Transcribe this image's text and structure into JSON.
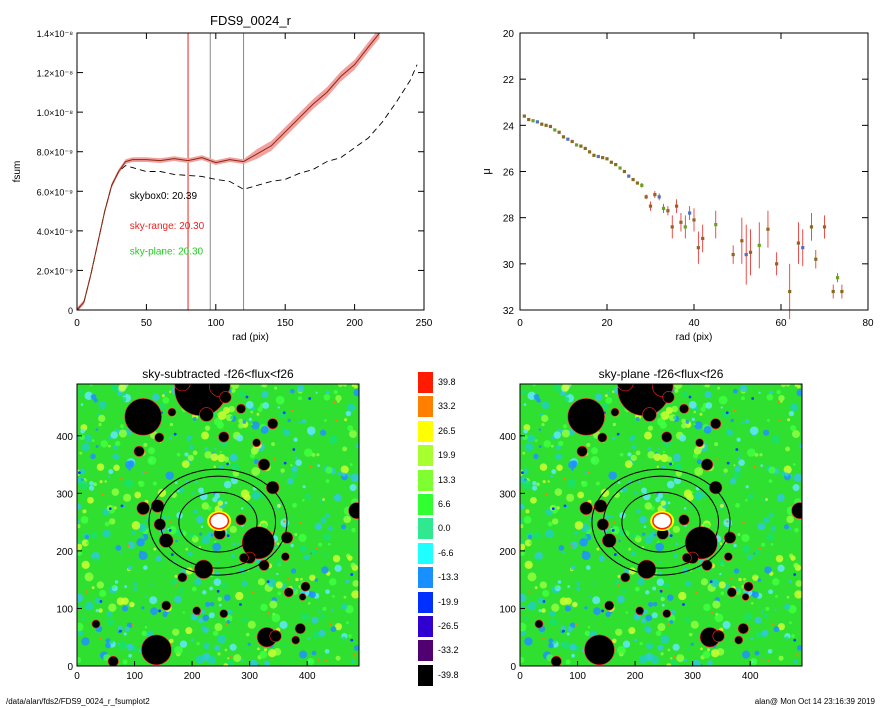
{
  "colors": {
    "red": "#e8231f",
    "pink": "#f2a0a0",
    "green": "#22cc22",
    "gray": "#888888",
    "brown": "#8a6a20"
  },
  "chart_data": [
    {
      "type": "line",
      "title": "FDS9_0024_r",
      "xlabel": "rad (pix)",
      "ylabel": "fsum",
      "xlim": [
        0,
        250
      ],
      "ylim": [
        0,
        1.4e-08
      ],
      "xticks": [
        "0",
        "50",
        "100",
        "150",
        "200",
        "250"
      ],
      "yticks": [
        "0",
        "2.0×10⁻⁹",
        "4.0×10⁻⁹",
        "6.0×10⁻⁹",
        "8.0×10⁻⁹",
        "1.0×10⁻⁸",
        "1.2×10⁻⁸",
        "1.4×10⁻⁸"
      ],
      "vlines": [
        {
          "x": 80,
          "color": "red"
        },
        {
          "x": 96,
          "color": "gray"
        },
        {
          "x": 120,
          "color": "gray"
        }
      ],
      "series": [
        {
          "style": "solid red with pink band",
          "x": [
            0,
            5,
            10,
            15,
            20,
            25,
            30,
            35,
            40,
            50,
            60,
            70,
            80,
            90,
            100,
            110,
            120,
            130,
            140,
            150,
            160,
            170,
            180,
            190,
            200,
            210,
            218
          ],
          "y": [
            0,
            4e-10,
            1.8e-09,
            3.4e-09,
            5e-09,
            6.3e-09,
            7e-09,
            7.5e-09,
            7.6e-09,
            7.6e-09,
            7.55e-09,
            7.65e-09,
            7.55e-09,
            7.7e-09,
            7.45e-09,
            7.6e-09,
            7.5e-09,
            7.9e-09,
            8.3e-09,
            9e-09,
            9.7e-09,
            1.04e-08,
            1.1e-08,
            1.18e-08,
            1.24e-08,
            1.33e-08,
            1.4e-08
          ]
        },
        {
          "style": "dashed black",
          "x": [
            0,
            5,
            10,
            15,
            20,
            25,
            30,
            35,
            40,
            50,
            60,
            70,
            80,
            90,
            100,
            110,
            120,
            130,
            140,
            150,
            160,
            170,
            180,
            190,
            200,
            210,
            220,
            230,
            240,
            245
          ],
          "y": [
            0,
            4e-10,
            1.8e-09,
            3.4e-09,
            5e-09,
            6.3e-09,
            7e-09,
            7.3e-09,
            7.2e-09,
            7e-09,
            7e-09,
            6.85e-09,
            6.8e-09,
            6.75e-09,
            6.6e-09,
            6.5e-09,
            6.1e-09,
            6.3e-09,
            6.5e-09,
            6.6e-09,
            6.9e-09,
            7.1e-09,
            7.5e-09,
            7.7e-09,
            8.2e-09,
            8.7e-09,
            9.5e-09,
            1.05e-08,
            1.16e-08,
            1.24e-08
          ]
        }
      ],
      "annotations": [
        {
          "text": "skybox0: 20.39",
          "color": "black",
          "x": 38,
          "y": 5.6e-09
        },
        {
          "text": "sky-range: 20.30",
          "color": "red",
          "x": 38,
          "y": 4.1e-09
        },
        {
          "text": "sky-plane: 20.30",
          "color": "green",
          "x": 38,
          "y": 2.8e-09
        }
      ]
    },
    {
      "type": "scatter",
      "title": "",
      "xlabel": "rad (pix)",
      "ylabel": "μ",
      "xlim": [
        0,
        80
      ],
      "ylim": [
        32,
        20
      ],
      "xticks": [
        "0",
        "20",
        "40",
        "60",
        "80"
      ],
      "yticks": [
        "20",
        "22",
        "24",
        "26",
        "28",
        "30",
        "32"
      ],
      "points": [
        [
          1,
          23.6,
          0
        ],
        [
          2,
          23.75,
          0
        ],
        [
          3,
          23.8,
          0
        ],
        [
          4,
          23.85,
          0
        ],
        [
          5,
          23.95,
          0
        ],
        [
          6,
          24.0,
          0
        ],
        [
          7,
          24.05,
          0
        ],
        [
          8,
          24.2,
          0
        ],
        [
          9,
          24.3,
          0
        ],
        [
          10,
          24.5,
          0
        ],
        [
          11,
          24.6,
          0
        ],
        [
          12,
          24.7,
          0
        ],
        [
          13,
          24.85,
          0
        ],
        [
          14,
          24.9,
          0
        ],
        [
          15,
          25.0,
          0
        ],
        [
          16,
          25.15,
          0
        ],
        [
          17,
          25.3,
          0
        ],
        [
          18,
          25.35,
          0
        ],
        [
          19,
          25.4,
          0
        ],
        [
          20,
          25.45,
          0
        ],
        [
          21,
          25.6,
          0
        ],
        [
          22,
          25.7,
          0
        ],
        [
          23,
          25.85,
          0
        ],
        [
          24,
          26.0,
          0
        ],
        [
          25,
          26.2,
          0
        ],
        [
          26,
          26.35,
          0
        ],
        [
          27,
          26.5,
          0
        ],
        [
          28,
          26.6,
          0.1
        ],
        [
          29,
          27.1,
          0.1
        ],
        [
          30,
          27.5,
          0.2
        ],
        [
          31,
          27.0,
          0.15
        ],
        [
          32,
          27.1,
          0.15
        ],
        [
          33,
          27.6,
          0.2
        ],
        [
          34,
          27.7,
          0.2
        ],
        [
          35,
          28.4,
          0.5
        ],
        [
          36,
          27.5,
          0.3
        ],
        [
          37,
          28.2,
          0.4
        ],
        [
          38,
          28.4,
          0.5
        ],
        [
          39,
          27.8,
          0.3
        ],
        [
          40,
          28.1,
          0.5
        ],
        [
          41,
          29.3,
          0.7
        ],
        [
          42,
          28.9,
          0.6
        ],
        [
          45,
          28.3,
          0.6
        ],
        [
          49,
          29.6,
          0.4
        ],
        [
          51,
          29.0,
          1.0
        ],
        [
          52,
          29.6,
          1.3
        ],
        [
          53,
          29.5,
          1.0
        ],
        [
          55,
          29.2,
          1.0
        ],
        [
          57,
          28.5,
          0.8
        ],
        [
          59,
          30.0,
          0.5
        ],
        [
          62,
          31.2,
          1.2
        ],
        [
          64,
          29.1,
          0.9
        ],
        [
          65,
          29.3,
          0.8
        ],
        [
          67,
          28.4,
          0.6
        ],
        [
          68,
          29.8,
          0.4
        ],
        [
          70,
          28.4,
          0.5
        ],
        [
          72,
          31.2,
          0.3
        ],
        [
          73,
          30.6,
          0.2
        ],
        [
          74,
          31.2,
          0.3
        ]
      ]
    },
    {
      "type": "heatmap",
      "title": "sky-subtracted -f26<flux<f26",
      "xlim": [
        0,
        490
      ],
      "ylim": [
        0,
        490
      ],
      "xticks": [
        "0",
        "100",
        "200",
        "300",
        "400"
      ],
      "yticks": [
        "0",
        "100",
        "200",
        "300",
        "400"
      ],
      "ellipses": [
        {
          "cx": 245,
          "cy": 250,
          "rx": 68,
          "ry": 52
        },
        {
          "cx": 245,
          "cy": 250,
          "rx": 100,
          "ry": 80
        },
        {
          "cx": 245,
          "cy": 250,
          "rx": 120,
          "ry": 92
        }
      ]
    },
    {
      "type": "heatmap",
      "title": "sky-plane -f26<flux<f26",
      "xlim": [
        0,
        490
      ],
      "ylim": [
        0,
        490
      ],
      "xticks": [
        "0",
        "100",
        "200",
        "300",
        "400"
      ],
      "yticks": [
        "0",
        "100",
        "200",
        "300",
        "400"
      ],
      "ellipses": [
        {
          "cx": 245,
          "cy": 250,
          "rx": 68,
          "ry": 52
        },
        {
          "cx": 245,
          "cy": 250,
          "rx": 100,
          "ry": 80
        },
        {
          "cx": 245,
          "cy": 250,
          "rx": 120,
          "ry": 92
        }
      ]
    }
  ],
  "colorbar": {
    "labels": [
      "39.8",
      "33.2",
      "26.5",
      "19.9",
      "13.3",
      "6.6",
      "0.0",
      "-6.6",
      "-13.3",
      "-19.9",
      "-26.5",
      "-33.2",
      "-39.8"
    ],
    "colors": [
      "#ff1a00",
      "#ff8000",
      "#ffff00",
      "#a8ff30",
      "#80ff30",
      "#30ff30",
      "#30e890",
      "#20ffff",
      "#1890ff",
      "#0030ff",
      "#3000d0",
      "#500070",
      "#000000"
    ]
  },
  "masks": [
    [
      215,
      480,
      45
    ],
    [
      248,
      486,
      18
    ],
    [
      183,
      492,
      14
    ],
    [
      115,
      433,
      32
    ],
    [
      143,
      397,
      8
    ],
    [
      108,
      373,
      9
    ],
    [
      165,
      441,
      7
    ],
    [
      225,
      437,
      12
    ],
    [
      258,
      467,
      10
    ],
    [
      285,
      447,
      8
    ],
    [
      255,
      398,
      9
    ],
    [
      340,
      421,
      9
    ],
    [
      312,
      388,
      7
    ],
    [
      325,
      350,
      10
    ],
    [
      340,
      310,
      11
    ],
    [
      486,
      270,
      14
    ],
    [
      315,
      214,
      28
    ],
    [
      285,
      254,
      9
    ],
    [
      248,
      230,
      10
    ],
    [
      300,
      188,
      10
    ],
    [
      325,
      175,
      9
    ],
    [
      115,
      274,
      11
    ],
    [
      140,
      278,
      11
    ],
    [
      144,
      246,
      10
    ],
    [
      155,
      218,
      12
    ],
    [
      220,
      168,
      16
    ],
    [
      183,
      154,
      8
    ],
    [
      290,
      188,
      8
    ],
    [
      365,
      223,
      10
    ],
    [
      362,
      190,
      7
    ],
    [
      397,
      138,
      8
    ],
    [
      368,
      128,
      8
    ],
    [
      330,
      50,
      17
    ],
    [
      345,
      52,
      10
    ],
    [
      138,
      28,
      26
    ],
    [
      155,
      105,
      8
    ],
    [
      33,
      73,
      7
    ],
    [
      208,
      96,
      7
    ],
    [
      255,
      91,
      7
    ],
    [
      392,
      120,
      6
    ],
    [
      388,
      65,
      9
    ],
    [
      380,
      45,
      7
    ],
    [
      63,
      8,
      9
    ]
  ],
  "footer": {
    "left": "/data/alan/fds2/FDS9_0024_r_fsumplot2",
    "right": "alan@  Mon Oct 14 23:16:39 2019"
  }
}
